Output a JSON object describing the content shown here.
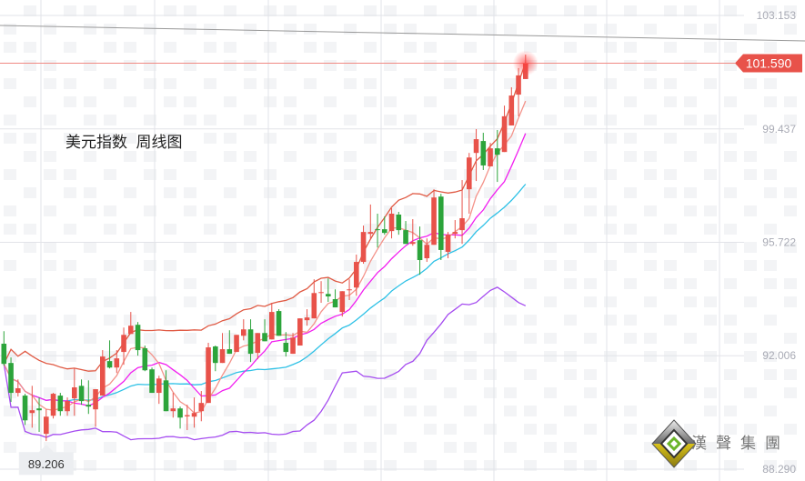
{
  "title": "美元指数  周线图",
  "logo": {
    "text": "漢聲集團"
  },
  "chart_data": {
    "type": "candlestick",
    "y_ticks": [
      103.153,
      99.437,
      95.722,
      92.006,
      88.29
    ],
    "ylim": [
      88.29,
      103.153
    ],
    "grid": true,
    "current_price": 101.59,
    "low_marker": 89.206,
    "colors": {
      "up": "#e8524a",
      "down": "#2ca43b",
      "ma5": "#f4938a",
      "ma10": "#f21ff0",
      "boll_mid": "#2ec1e6",
      "boll_upper": "#e05a44",
      "boll_lower": "#a54cf0",
      "price_line": "#f08a84",
      "trend_line": "#999999"
    },
    "indicators": [
      "MA5",
      "MA10",
      "BOLL upper",
      "BOLL mid",
      "BOLL lower"
    ],
    "candles": [
      [
        92.4,
        92.81,
        91.68,
        91.74
      ],
      [
        91.77,
        91.95,
        90.49,
        90.79
      ],
      [
        90.79,
        91.23,
        90.67,
        90.94
      ],
      [
        90.7,
        90.76,
        89.74,
        89.89
      ],
      [
        90.13,
        91.02,
        89.65,
        90.22
      ],
      [
        90.28,
        90.64,
        89.51,
        90.22
      ],
      [
        89.45,
        90.25,
        89.21,
        90.01
      ],
      [
        90.04,
        90.79,
        89.95,
        90.76
      ],
      [
        90.7,
        90.79,
        90.04,
        90.19
      ],
      [
        90.19,
        90.64,
        90.04,
        90.52
      ],
      [
        90.61,
        91.59,
        90.04,
        90.97
      ],
      [
        91.02,
        91.23,
        90.4,
        90.52
      ],
      [
        90.4,
        91.2,
        90.1,
        90.34
      ],
      [
        90.25,
        90.91,
        89.68,
        90.91
      ],
      [
        90.7,
        92.19,
        90.7,
        91.98
      ],
      [
        91.83,
        92.51,
        91.59,
        91.62
      ],
      [
        91.62,
        92.19,
        91.44,
        91.92
      ],
      [
        92.13,
        92.93,
        91.71,
        92.69
      ],
      [
        92.72,
        93.44,
        92.72,
        92.99
      ],
      [
        93.02,
        93.11,
        92.01,
        92.19
      ],
      [
        92.25,
        92.34,
        91.5,
        91.53
      ],
      [
        91.56,
        91.62,
        90.79,
        90.79
      ],
      [
        90.79,
        91.35,
        90.43,
        91.26
      ],
      [
        91.2,
        91.53,
        90.19,
        90.19
      ],
      [
        90.19,
        90.79,
        89.98,
        90.28
      ],
      [
        90.28,
        90.34,
        89.62,
        89.98
      ],
      [
        90.02,
        90.4,
        89.57,
        90.06
      ],
      [
        90.01,
        90.64,
        89.65,
        90.13
      ],
      [
        90.19,
        90.85,
        89.86,
        90.46
      ],
      [
        90.46,
        92.43,
        90.46,
        92.28
      ],
      [
        92.31,
        92.34,
        91.5,
        91.77
      ],
      [
        91.77,
        92.75,
        91.77,
        92.22
      ],
      [
        92.22,
        92.84,
        92.07,
        92.07
      ],
      [
        92.13,
        92.69,
        92.13,
        92.69
      ],
      [
        92.66,
        93.2,
        92.51,
        92.87
      ],
      [
        92.87,
        93.2,
        91.8,
        92.07
      ],
      [
        92.1,
        92.75,
        91.89,
        92.75
      ],
      [
        92.75,
        93.2,
        92.48,
        92.48
      ],
      [
        92.54,
        93.74,
        92.54,
        93.44
      ],
      [
        93.47,
        93.53,
        92.66,
        92.66
      ],
      [
        92.43,
        92.78,
        91.98,
        92.13
      ],
      [
        92.07,
        92.75,
        92.07,
        92.6
      ],
      [
        92.34,
        93.23,
        92.34,
        93.23
      ],
      [
        93.17,
        93.53,
        92.99,
        93.26
      ],
      [
        93.23,
        94.51,
        93.23,
        94.06
      ],
      [
        94.06,
        94.45,
        93.74,
        94.09
      ],
      [
        94.03,
        94.54,
        93.77,
        93.95
      ],
      [
        93.86,
        94.18,
        93.59,
        93.59
      ],
      [
        93.44,
        94.12,
        93.29,
        94.12
      ],
      [
        94.15,
        94.51,
        93.83,
        94.18
      ],
      [
        94.24,
        95.32,
        93.97,
        95.08
      ],
      [
        95.08,
        96.27,
        95.02,
        96.06
      ],
      [
        96.0,
        96.96,
        95.85,
        96.06
      ],
      [
        96.15,
        96.66,
        95.55,
        96.12
      ],
      [
        96.15,
        96.57,
        95.97,
        96.03
      ],
      [
        96.09,
        96.84,
        95.85,
        96.66
      ],
      [
        96.63,
        96.72,
        95.97,
        96.12
      ],
      [
        96.12,
        96.42,
        95.67,
        95.67
      ],
      [
        95.67,
        96.48,
        95.61,
        95.73
      ],
      [
        95.79,
        96.24,
        94.66,
        95.14
      ],
      [
        95.2,
        95.85,
        95.08,
        95.64
      ],
      [
        95.64,
        97.46,
        95.64,
        97.19
      ],
      [
        97.22,
        97.31,
        95.14,
        95.47
      ],
      [
        95.41,
        96.06,
        95.2,
        95.97
      ],
      [
        96.0,
        96.45,
        95.85,
        96.06
      ],
      [
        96.12,
        97.76,
        95.67,
        96.51
      ],
      [
        97.46,
        98.65,
        96.66,
        98.5
      ],
      [
        98.65,
        99.43,
        97.73,
        99.1
      ],
      [
        99.04,
        99.31,
        98.09,
        98.24
      ],
      [
        98.21,
        98.98,
        98.21,
        98.8
      ],
      [
        98.8,
        99.4,
        97.7,
        98.59
      ],
      [
        98.68,
        100.2,
        98.68,
        99.85
      ],
      [
        99.55,
        100.8,
        99.55,
        100.53
      ],
      [
        100.56,
        101.43,
        99.85,
        101.19
      ],
      [
        101.07,
        101.87,
        101.07,
        101.59
      ]
    ]
  }
}
